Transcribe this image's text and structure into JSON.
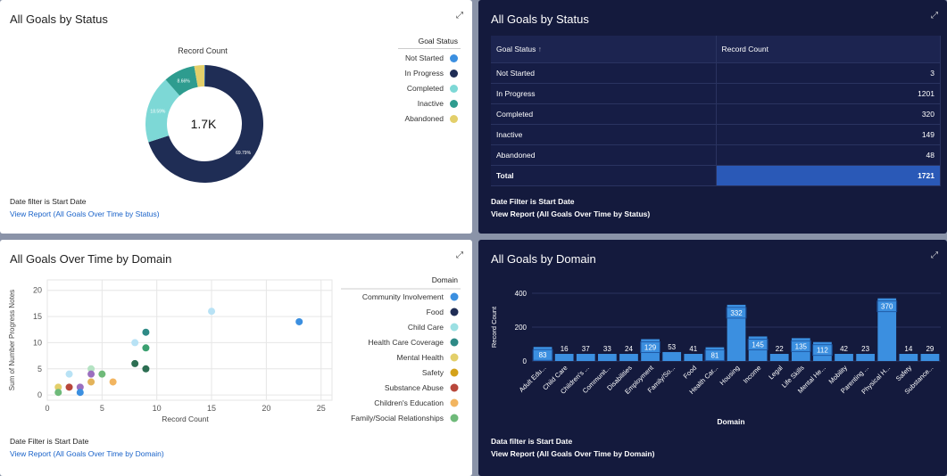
{
  "status_donut": {
    "title": "All Goals by Status",
    "footer_filter": "Date filter is Start Date",
    "footer_link": "View Report (All Goals Over Time by Status)",
    "center_value": "1.7K"
  },
  "status_table": {
    "title": "All Goals by Status",
    "col_status": "Goal Status",
    "sort_glyph": "↑",
    "col_count": "Record Count",
    "rows": [
      {
        "status": "Not Started",
        "count": "3"
      },
      {
        "status": "In Progress",
        "count": "1201"
      },
      {
        "status": "Completed",
        "count": "320"
      },
      {
        "status": "Inactive",
        "count": "149"
      },
      {
        "status": "Abandoned",
        "count": "48"
      }
    ],
    "total_label": "Total",
    "total_value": "1721",
    "footer_filter": "Date Filter is Start Date",
    "footer_link": "View Report (All Goals Over Time by Status)"
  },
  "domain_scatter": {
    "title": "All Goals Over Time by Domain",
    "footer_filter": "Date Filter is Start Date",
    "footer_link": "View Report (All Goals Over Time by Domain)"
  },
  "domain_bar": {
    "title": "All Goals by Domain",
    "footer_filter": "Data filter is Start Date",
    "footer_link": "View Report (All Goals Over Time by Domain)"
  },
  "chart_data": [
    {
      "type": "pie",
      "subtype": "donut",
      "title": "Record Count",
      "legend_title": "Goal Status",
      "labels": [
        "Not Started",
        "In Progress",
        "Completed",
        "Inactive",
        "Abandoned"
      ],
      "values": [
        3,
        1201,
        320,
        149,
        48
      ],
      "colors": [
        "#3b8fe0",
        "#1f2d55",
        "#7dd8d6",
        "#2e9c8f",
        "#e3cf6a"
      ],
      "slice_labels": [
        "",
        "69.79%",
        "18.59%",
        "8.66%",
        ""
      ]
    },
    {
      "type": "scatter",
      "xlabel": "Record Count",
      "ylabel": "Sum of Number Progress Notes",
      "xlim": [
        0,
        26
      ],
      "ylim": [
        -1,
        22
      ],
      "xticks": [
        0,
        5,
        10,
        15,
        20,
        25
      ],
      "yticks": [
        0,
        5,
        10,
        15,
        20
      ],
      "legend_title": "Domain",
      "legend": [
        {
          "name": "Community Involvement",
          "color": "#3b8fe0"
        },
        {
          "name": "Food",
          "color": "#1f2d55"
        },
        {
          "name": "Child Care",
          "color": "#9be0e3"
        },
        {
          "name": "Health Care Coverage",
          "color": "#2e8a86"
        },
        {
          "name": "Mental Health",
          "color": "#e3cf6a"
        },
        {
          "name": "Safety",
          "color": "#d4a21a"
        },
        {
          "name": "Substance Abuse",
          "color": "#b8473b"
        },
        {
          "name": "Children's Education",
          "color": "#f2b560"
        },
        {
          "name": "Family/Social Relationships",
          "color": "#6fba7a"
        }
      ],
      "points": [
        {
          "x": 15,
          "y": 16,
          "color": "#b8e2f5"
        },
        {
          "x": 23,
          "y": 14,
          "color": "#3b8fe0"
        },
        {
          "x": 9,
          "y": 12,
          "color": "#2e8a86"
        },
        {
          "x": 8,
          "y": 10,
          "color": "#b8e2f5"
        },
        {
          "x": 9,
          "y": 9,
          "color": "#3ba070"
        },
        {
          "x": 8,
          "y": 6,
          "color": "#2c6e52"
        },
        {
          "x": 9,
          "y": 5,
          "color": "#2c6e52"
        },
        {
          "x": 4,
          "y": 5,
          "color": "#b5e3c3"
        },
        {
          "x": 2,
          "y": 4,
          "color": "#b8e2f5"
        },
        {
          "x": 4,
          "y": 4,
          "color": "#9b6fbf"
        },
        {
          "x": 5,
          "y": 4,
          "color": "#6fba7a"
        },
        {
          "x": 6,
          "y": 2.5,
          "color": "#f2b560"
        },
        {
          "x": 4,
          "y": 2.5,
          "color": "#e3b35a"
        },
        {
          "x": 1,
          "y": 1.5,
          "color": "#e3cf6a"
        },
        {
          "x": 2,
          "y": 1.5,
          "color": "#b8473b"
        },
        {
          "x": 3,
          "y": 1.5,
          "color": "#9b6fbf"
        },
        {
          "x": 1,
          "y": 0.5,
          "color": "#6fba7a"
        },
        {
          "x": 3,
          "y": 0.5,
          "color": "#3b8fe0"
        }
      ]
    },
    {
      "type": "bar",
      "xlabel": "Domain",
      "ylabel": "Record Count",
      "ylim": [
        0,
        400
      ],
      "yticks": [
        0,
        200,
        400
      ],
      "categories": [
        "Adult Edu...",
        "Child Care",
        "Children's ...",
        "Communit...",
        "Disabilities",
        "Employment",
        "Family/So...",
        "Food",
        "Health Car...",
        "Housing",
        "Income",
        "Legal",
        "Life Skills",
        "Mental He...",
        "Mobility",
        "Parenting ...",
        "Physical H...",
        "Safety",
        "Substance..."
      ],
      "values": [
        83,
        16,
        37,
        33,
        24,
        129,
        53,
        41,
        81,
        332,
        145,
        22,
        135,
        112,
        42,
        23,
        370,
        14,
        29
      ],
      "bar_color": "#3b8fe0"
    }
  ]
}
